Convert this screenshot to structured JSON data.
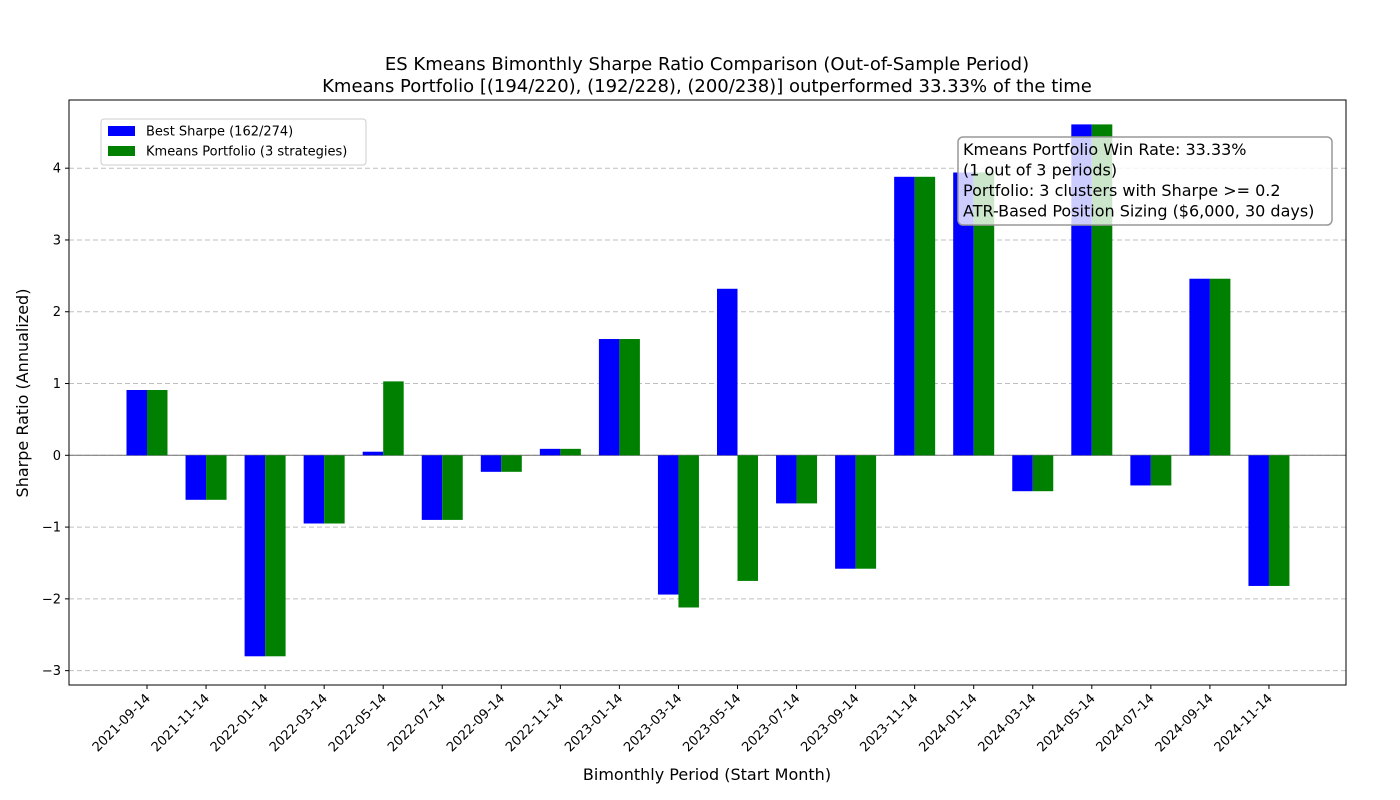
{
  "chart_data": {
    "type": "bar",
    "title": "ES Kmeans Bimonthly Sharpe Ratio Comparison (Out-of-Sample Period)",
    "subtitle": "Kmeans Portfolio [(194/220), (192/228), (200/238)] outperformed 33.33% of the time",
    "xlabel": "Bimonthly Period (Start Month)",
    "ylabel": "Sharpe Ratio (Annualized)",
    "ylim": [
      -3.2,
      4.95
    ],
    "yticks": [
      -3,
      -2,
      -1,
      0,
      1,
      2,
      3,
      4
    ],
    "ytick_labels": [
      "−3",
      "−2",
      "−1",
      "0",
      "1",
      "2",
      "3",
      "4"
    ],
    "grid": "y-dashed",
    "legend_position": "top-left",
    "categories": [
      "2021-09-14",
      "2021-11-14",
      "2022-01-14",
      "2022-03-14",
      "2022-05-14",
      "2022-07-14",
      "2022-09-14",
      "2022-11-14",
      "2023-01-14",
      "2023-03-14",
      "2023-05-14",
      "2023-07-14",
      "2023-09-14",
      "2023-11-14",
      "2024-01-14",
      "2024-03-14",
      "2024-05-14",
      "2024-07-14",
      "2024-09-14",
      "2024-11-14"
    ],
    "series": [
      {
        "name": "Best Sharpe (162/274)",
        "color": "#0000ff",
        "values": [
          0.91,
          -0.62,
          -2.8,
          -0.95,
          0.05,
          -0.9,
          -0.23,
          0.09,
          1.62,
          -1.94,
          2.32,
          -0.67,
          -1.58,
          3.88,
          3.94,
          -0.5,
          4.61,
          -0.42,
          2.46,
          -1.82
        ]
      },
      {
        "name": "Kmeans Portfolio (3 strategies)",
        "color": "#008000",
        "values": [
          0.91,
          -0.62,
          -2.8,
          -0.95,
          1.03,
          -0.9,
          -0.23,
          0.09,
          1.62,
          -2.12,
          -1.75,
          -0.67,
          -1.58,
          3.88,
          3.94,
          -0.5,
          4.61,
          -0.42,
          2.46,
          -1.82
        ]
      }
    ],
    "annotation": [
      "Kmeans Portfolio Win Rate: 33.33%",
      "(1 out of 3 periods)",
      "Portfolio: 3 clusters with Sharpe >= 0.2",
      "ATR-Based Position Sizing ($6,000, 30 days)"
    ]
  }
}
